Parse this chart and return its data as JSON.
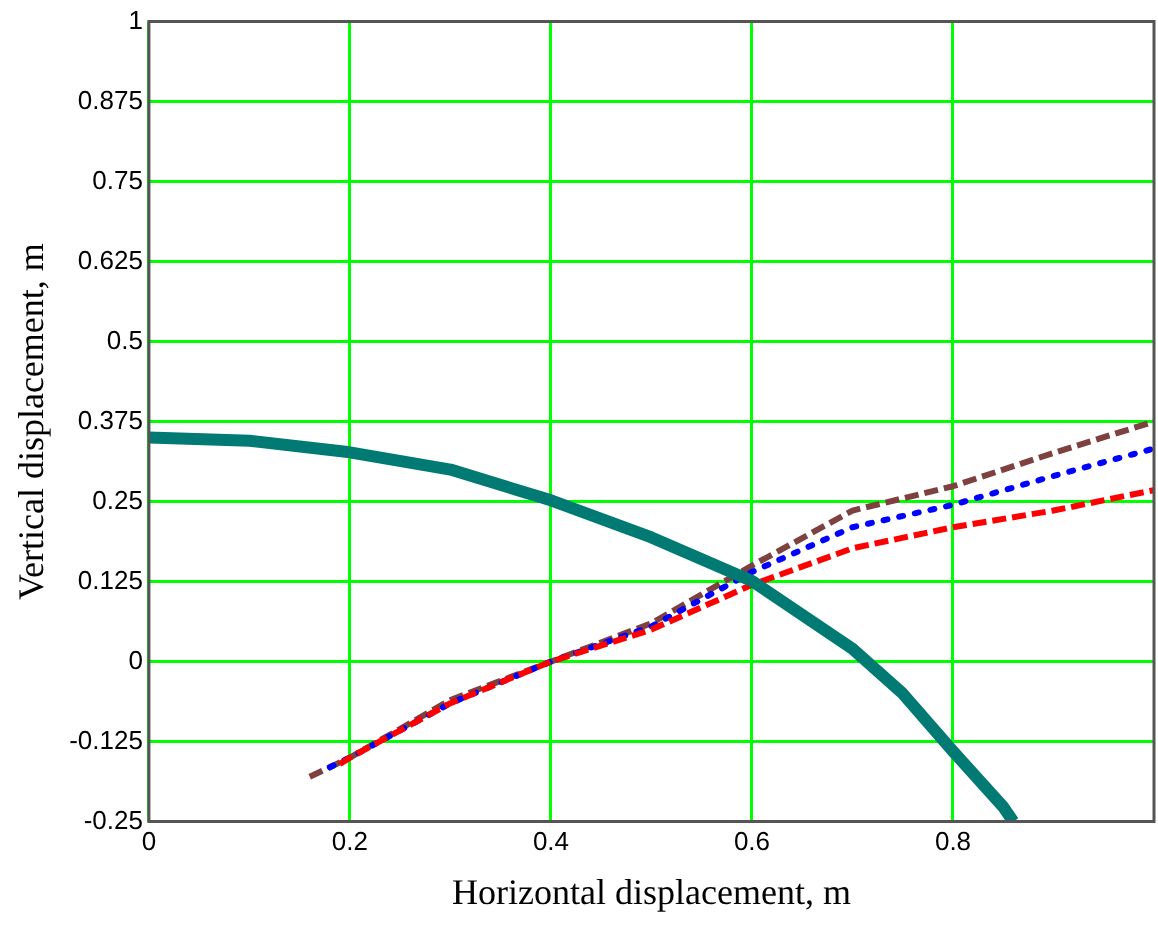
{
  "chart_data": {
    "type": "line",
    "xlabel": "Horizontal displacement, m",
    "ylabel": "Vertical displacement, m",
    "xlim": [
      0,
      1
    ],
    "ylim": [
      -0.25,
      1
    ],
    "xticks": [
      0,
      0.2,
      0.4,
      0.6,
      0.8
    ],
    "yticks": [
      -0.25,
      -0.125,
      0,
      0.125,
      0.25,
      0.375,
      0.5,
      0.625,
      0.75,
      0.875,
      1
    ],
    "grid": true,
    "legend": false,
    "marker": "none",
    "series": [
      {
        "color": "#007a72",
        "line_style": "solid",
        "x": [
          0,
          0.1,
          0.2,
          0.3,
          0.4,
          0.5,
          0.6,
          0.7,
          0.75,
          0.8,
          0.85,
          0.86
        ],
        "values": [
          0.35,
          0.345,
          0.327,
          0.3,
          0.252,
          0.194,
          0.126,
          0.02,
          -0.05,
          -0.14,
          -0.227,
          -0.25
        ]
      },
      {
        "color": "#ff0000",
        "line_style": "dashed",
        "x": [
          0.19,
          0.2,
          0.3,
          0.4,
          0.5,
          0.6,
          0.7,
          0.8,
          0.9,
          1
        ],
        "values": [
          -0.16,
          -0.15,
          -0.065,
          0,
          0.05,
          0.12,
          0.177,
          0.21,
          0.236,
          0.268
        ]
      },
      {
        "color": "#0000ff",
        "line_style": "dotted",
        "x": [
          0.18,
          0.2,
          0.3,
          0.4,
          0.5,
          0.6,
          0.7,
          0.8,
          0.9,
          1
        ],
        "values": [
          -0.165,
          -0.15,
          -0.065,
          0,
          0.055,
          0.14,
          0.21,
          0.245,
          0.29,
          0.333
        ]
      },
      {
        "color": "#7f4040",
        "line_style": "dashed",
        "x": [
          0.16,
          0.2,
          0.3,
          0.4,
          0.5,
          0.6,
          0.7,
          0.8,
          0.9,
          1
        ],
        "values": [
          -0.18,
          -0.15,
          -0.06,
          0,
          0.06,
          0.15,
          0.236,
          0.274,
          0.326,
          0.375
        ]
      }
    ]
  }
}
